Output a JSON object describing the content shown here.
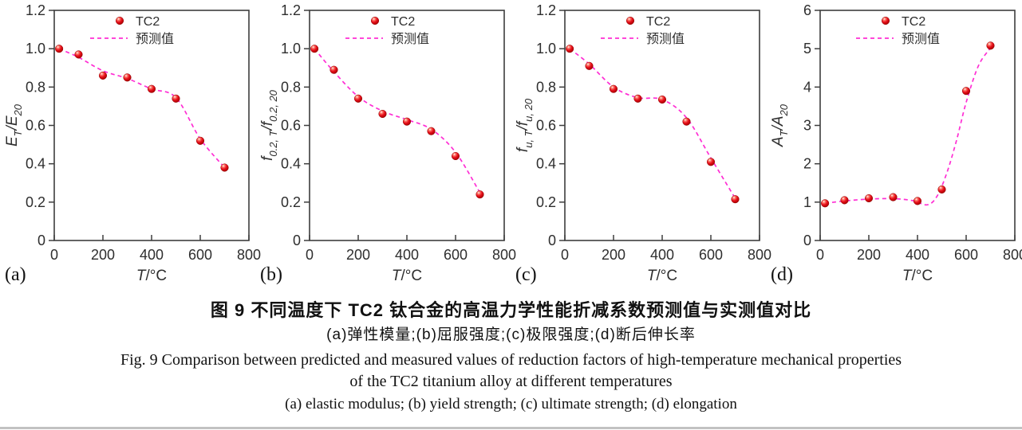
{
  "figure": {
    "caption_zh_title": "图 9  不同温度下 TC2 钛合金的高温力学性能折减系数预测值与实测值对比",
    "caption_zh_sub": "(a)弹性模量;(b)屈服强度;(c)极限强度;(d)断后伸长率",
    "caption_en_line1": "Fig. 9  Comparison between predicted and measured values of reduction factors of high-temperature mechanical properties",
    "caption_en_line2": "of the TC2 titanium alloy at different temperatures",
    "caption_en_sub": "(a) elastic modulus; (b) yield strength; (c) ultimate strength; (d) elongation"
  },
  "colors": {
    "marker": "#e8101c",
    "marker_edge": "#a80000",
    "predicted": "#ff2ed4",
    "axis": "#3d3d3d",
    "text": "#2e2e2e"
  },
  "legend": {
    "series_label": "TC2",
    "predicted_label": "预测值",
    "position": "top-center"
  },
  "chart_data": [
    {
      "type": "scatter",
      "panel": "(a)",
      "ylabel": "E_{T}/E_{20}",
      "xlabel": "T/°C",
      "xlim": [
        0,
        800
      ],
      "ylim": [
        0,
        1.2
      ],
      "xticks": [
        0,
        200,
        400,
        600,
        800
      ],
      "xticklabels": [
        "0",
        "200",
        "400",
        "600",
        "800"
      ],
      "yticks": [
        0,
        0.2,
        0.4,
        0.6,
        0.8,
        1.0,
        1.2
      ],
      "yticklabels": [
        "0",
        "0.2",
        "0.4",
        "0.6",
        "0.8",
        "1.0",
        "1.2"
      ],
      "x": [
        20,
        100,
        200,
        300,
        400,
        500,
        600,
        700
      ],
      "measured": [
        1.0,
        0.97,
        0.86,
        0.85,
        0.79,
        0.74,
        0.52,
        0.38
      ],
      "predicted_curve": [
        [
          20,
          1.0
        ],
        [
          100,
          0.955
        ],
        [
          200,
          0.885
        ],
        [
          300,
          0.845
        ],
        [
          400,
          0.79
        ],
        [
          500,
          0.745
        ],
        [
          600,
          0.53
        ],
        [
          700,
          0.38
        ]
      ],
      "grid": false
    },
    {
      "type": "scatter",
      "panel": "(b)",
      "ylabel": "f_{0.2, T}/f_{0.2, 20}",
      "xlabel": "T/°C",
      "xlim": [
        0,
        800
      ],
      "ylim": [
        0,
        1.2
      ],
      "xticks": [
        0,
        200,
        400,
        600,
        800
      ],
      "xticklabels": [
        "0",
        "200",
        "400",
        "600",
        "800"
      ],
      "yticks": [
        0,
        0.2,
        0.4,
        0.6,
        0.8,
        1.0,
        1.2
      ],
      "yticklabels": [
        "0",
        "0.2",
        "0.4",
        "0.6",
        "0.8",
        "1.0",
        "1.2"
      ],
      "x": [
        20,
        100,
        200,
        300,
        400,
        500,
        600,
        700
      ],
      "measured": [
        1.0,
        0.89,
        0.74,
        0.66,
        0.62,
        0.57,
        0.44,
        0.24
      ],
      "predicted_curve": [
        [
          20,
          1.0
        ],
        [
          100,
          0.88
        ],
        [
          200,
          0.75
        ],
        [
          300,
          0.675
        ],
        [
          400,
          0.63
        ],
        [
          500,
          0.58
        ],
        [
          600,
          0.46
        ],
        [
          700,
          0.25
        ]
      ],
      "grid": false
    },
    {
      "type": "scatter",
      "panel": "(c)",
      "ylabel": "f_{u, T}/f_{u, 20}",
      "xlabel": "T/°C",
      "xlim": [
        0,
        800
      ],
      "ylim": [
        0,
        1.2
      ],
      "xticks": [
        0,
        200,
        400,
        600,
        800
      ],
      "xticklabels": [
        "0",
        "200",
        "400",
        "600",
        "800"
      ],
      "yticks": [
        0,
        0.2,
        0.4,
        0.6,
        0.8,
        1.0,
        1.2
      ],
      "yticklabels": [
        "0",
        "0.2",
        "0.4",
        "0.6",
        "0.8",
        "1.0",
        "1.2"
      ],
      "x": [
        20,
        100,
        200,
        300,
        400,
        500,
        600,
        700
      ],
      "measured": [
        1.0,
        0.91,
        0.79,
        0.74,
        0.735,
        0.62,
        0.41,
        0.215
      ],
      "predicted_curve": [
        [
          20,
          1.0
        ],
        [
          100,
          0.92
        ],
        [
          200,
          0.8
        ],
        [
          300,
          0.745
        ],
        [
          400,
          0.735
        ],
        [
          500,
          0.64
        ],
        [
          600,
          0.43
        ],
        [
          700,
          0.22
        ]
      ],
      "grid": false
    },
    {
      "type": "scatter",
      "panel": "(d)",
      "ylabel": "A_{T}/A_{20}",
      "xlabel": "T/°C",
      "xlim": [
        0,
        800
      ],
      "ylim": [
        0,
        6
      ],
      "xticks": [
        0,
        200,
        400,
        600,
        800
      ],
      "xticklabels": [
        "0",
        "200",
        "400",
        "600",
        "800"
      ],
      "yticks": [
        0,
        1,
        2,
        3,
        4,
        5,
        6
      ],
      "yticklabels": [
        "0",
        "1",
        "2",
        "3",
        "4",
        "5",
        "6"
      ],
      "x": [
        20,
        100,
        200,
        300,
        400,
        500,
        600,
        700
      ],
      "measured": [
        0.97,
        1.05,
        1.1,
        1.13,
        1.03,
        1.33,
        3.9,
        5.08
      ],
      "predicted_curve": [
        [
          20,
          0.97
        ],
        [
          100,
          1.03
        ],
        [
          200,
          1.08
        ],
        [
          300,
          1.09
        ],
        [
          380,
          1.04
        ],
        [
          440,
          0.93
        ],
        [
          480,
          1.15
        ],
        [
          520,
          1.75
        ],
        [
          560,
          2.6
        ],
        [
          600,
          3.6
        ],
        [
          650,
          4.55
        ],
        [
          700,
          5.02
        ]
      ],
      "grid": false
    }
  ]
}
